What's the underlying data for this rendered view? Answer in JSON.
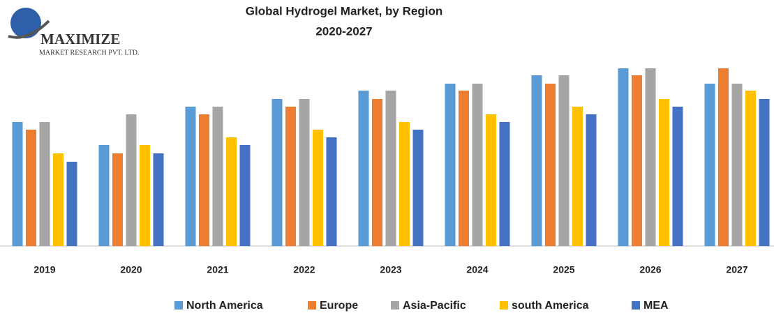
{
  "chart_data": {
    "type": "bar",
    "title": "Global Hydrogel Market, by Region",
    "subtitle": "2020-2027",
    "logo": {
      "name": "MAXIMIZE",
      "tagline": "MARKET RESEARCH PVT. LTD."
    },
    "categories": [
      "2019",
      "2020",
      "2021",
      "2022",
      "2023",
      "2024",
      "2025",
      "2026",
      "2027"
    ],
    "series": [
      {
        "name": "North America",
        "color": "#5b9bd5",
        "values": [
          178,
          145,
          200,
          211,
          223,
          233,
          245,
          255,
          233
        ]
      },
      {
        "name": "Europe",
        "color": "#ed7d31",
        "values": [
          167,
          133,
          189,
          200,
          211,
          223,
          233,
          245,
          255
        ]
      },
      {
        "name": "Asia-Pacific",
        "color": "#a5a5a5",
        "values": [
          178,
          189,
          200,
          211,
          223,
          233,
          245,
          255,
          233
        ]
      },
      {
        "name": "south America",
        "color": "#ffc000",
        "values": [
          133,
          145,
          156,
          167,
          178,
          189,
          200,
          211,
          223
        ]
      },
      {
        "name": "MEA",
        "color": "#4472c4",
        "values": [
          121,
          133,
          145,
          156,
          167,
          178,
          189,
          200,
          211
        ]
      }
    ]
  }
}
